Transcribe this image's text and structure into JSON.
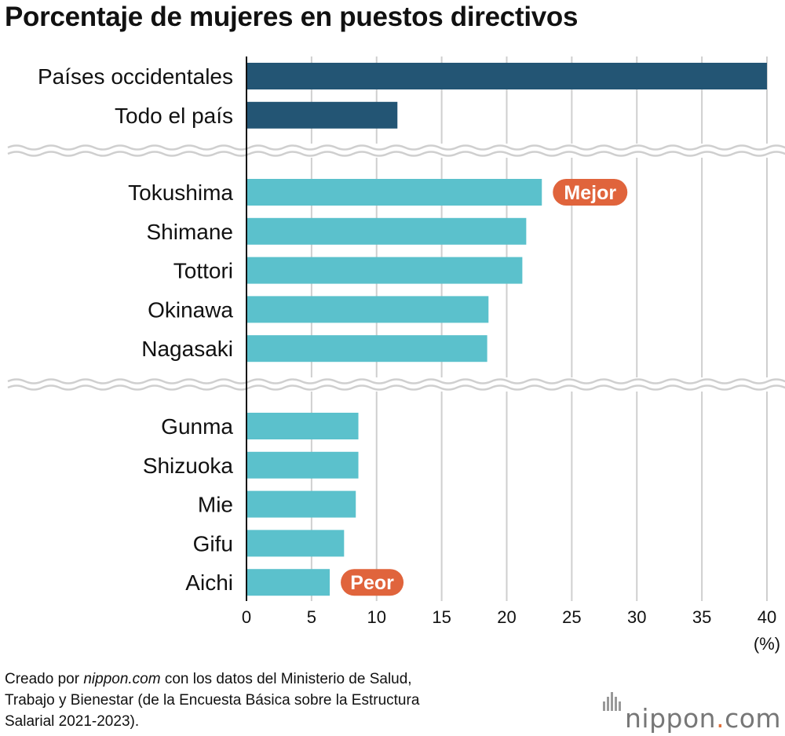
{
  "title": "Porcentaje de mujeres en puestos directivos",
  "chart_data": {
    "type": "bar",
    "orientation": "horizontal",
    "unit_label": "(%)",
    "xlim": [
      0,
      40
    ],
    "xticks": [
      0,
      5,
      10,
      15,
      20,
      25,
      30,
      35,
      40
    ],
    "grid": true,
    "groups": [
      {
        "color": "#235574",
        "bars": [
          {
            "label": "Países occidentales",
            "value": 40.0
          },
          {
            "label": "Todo el país",
            "value": 11.6
          }
        ]
      },
      {
        "color": "#5bc1cc",
        "bars": [
          {
            "label": "Tokushima",
            "value": 22.7,
            "badge": "Mejor"
          },
          {
            "label": "Shimane",
            "value": 21.5
          },
          {
            "label": "Tottori",
            "value": 21.2
          },
          {
            "label": "Okinawa",
            "value": 18.6
          },
          {
            "label": "Nagasaki",
            "value": 18.5
          }
        ]
      },
      {
        "color": "#5bc1cc",
        "bars": [
          {
            "label": "Gunma",
            "value": 8.6
          },
          {
            "label": "Shizuoka",
            "value": 8.6
          },
          {
            "label": "Mie",
            "value": 8.4
          },
          {
            "label": "Gifu",
            "value": 7.5
          },
          {
            "label": "Aichi",
            "value": 6.4,
            "badge": "Peor"
          }
        ]
      }
    ],
    "badge_color": "#e0643c"
  },
  "footer": {
    "line1_prefix": "Creado por ",
    "line1_site": "nippon.com",
    "line1_suffix": " con los datos del Ministerio de Salud,",
    "line2": "Trabajo y Bienestar (de la Encuesta Básica sobre la Estructura",
    "line3": "Salarial 2021-2023)."
  },
  "logo": {
    "name": "nippon",
    "dot": ".",
    "tld": "com"
  }
}
